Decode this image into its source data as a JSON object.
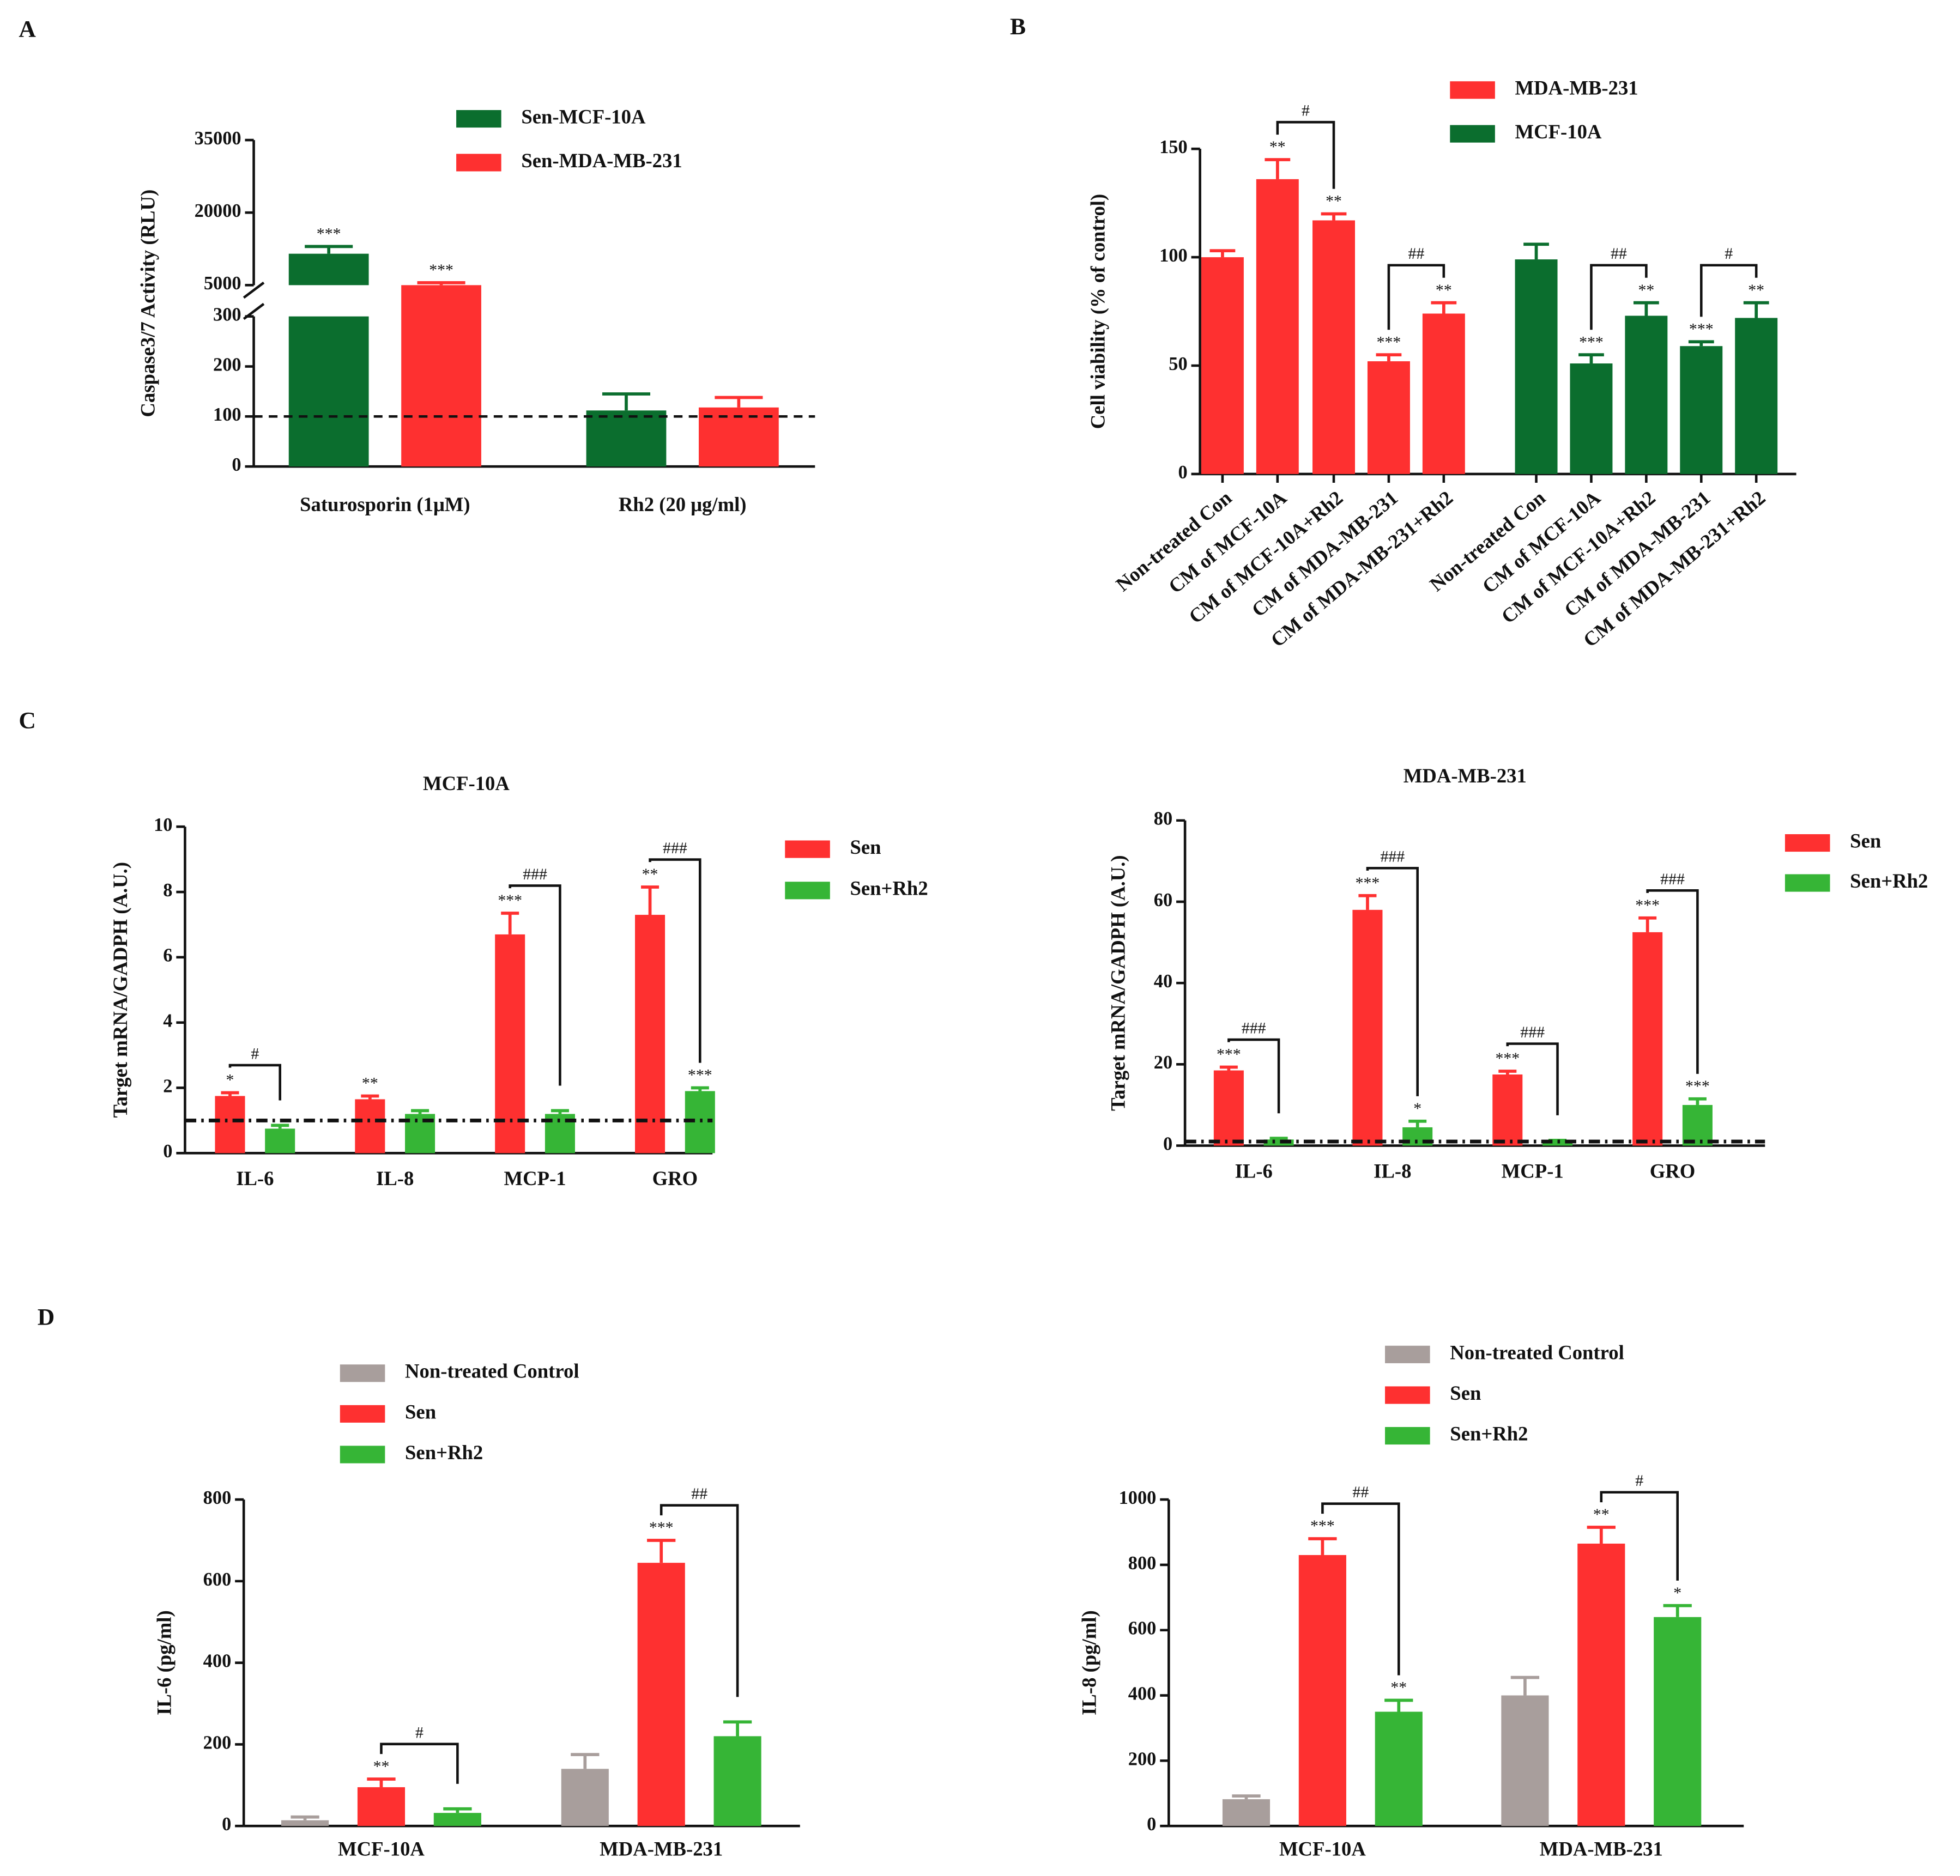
{
  "chart_data": [
    {
      "type": "bar",
      "panel": "A",
      "ylabel": "Caspase3/7  Activity (RLU)",
      "categories": [
        "Saturosporin (1μM)",
        "Rh2 (20 μg/ml)"
      ],
      "series": [
        {
          "name": "Sen-MCF-10A",
          "color": "#0b6e2e",
          "values": [
            11500,
            112
          ],
          "errors": [
            1500,
            33
          ],
          "stars": [
            "***",
            null
          ]
        },
        {
          "name": "Sen-MDA-MB-231",
          "color": "#fe3030",
          "values": [
            5000,
            118
          ],
          "errors": [
            500,
            20
          ],
          "stars": [
            "***",
            null
          ]
        }
      ],
      "ylim": [
        0,
        35000
      ],
      "ybreak": [
        300,
        5000
      ],
      "yticks": [
        0,
        100,
        200,
        300,
        5000,
        20000,
        35000
      ],
      "reference_line": 100,
      "brackets": []
    },
    {
      "type": "bar",
      "panel": "B",
      "ylabel": "Cell viability (% of control)",
      "categories": [
        "Non-treated Con",
        "CM of MCF-10A",
        "CM of MCF-10A+Rh2",
        "CM of MDA-MB-231",
        "CM of MDA-MB-231+Rh2",
        "Non-treated Con",
        "CM of MCF-10A",
        "CM of MCF-10A+Rh2",
        "CM of MDA-MB-231",
        "CM of MDA-MB-231+Rh2"
      ],
      "series": [
        {
          "name": "MDA-MB-231",
          "color": "#fe3030",
          "values": [
            100,
            136,
            117,
            52,
            74,
            null,
            null,
            null,
            null,
            null
          ],
          "errors": [
            3,
            9,
            3,
            3,
            5,
            null,
            null,
            null,
            null,
            null
          ],
          "stars": [
            null,
            "**",
            "**",
            "***",
            "**",
            null,
            null,
            null,
            null,
            null
          ]
        },
        {
          "name": "MCF-10A",
          "color": "#0b6e2e",
          "values": [
            null,
            null,
            null,
            null,
            null,
            99,
            51,
            73,
            59,
            72
          ],
          "errors": [
            null,
            null,
            null,
            null,
            null,
            7,
            4,
            6,
            2,
            7
          ],
          "stars": [
            null,
            null,
            null,
            null,
            null,
            null,
            "***",
            "**",
            "***",
            "**"
          ]
        }
      ],
      "ylim": [
        0,
        150
      ],
      "yticks": [
        0,
        50,
        100,
        150
      ],
      "brackets": [
        {
          "label": "#",
          "bars": [
            [
              1,
              0
            ],
            [
              2,
              0
            ]
          ]
        },
        {
          "label": "##",
          "bars": [
            [
              3,
              0
            ],
            [
              4,
              0
            ]
          ]
        },
        {
          "label": "##",
          "bars": [
            [
              6,
              1
            ],
            [
              7,
              1
            ]
          ]
        },
        {
          "label": "#",
          "bars": [
            [
              8,
              1
            ],
            [
              9,
              1
            ]
          ]
        }
      ]
    },
    {
      "type": "bar",
      "panel": "C",
      "title": "MCF-10A",
      "ylabel": "Target mRNA/GADPH (A.U.)",
      "categories": [
        "IL-6",
        "IL-8",
        "MCP-1",
        "GRO"
      ],
      "series": [
        {
          "name": "Sen",
          "color": "#fe3030",
          "values": [
            1.75,
            1.65,
            6.7,
            7.3
          ],
          "errors": [
            0.1,
            0.1,
            0.65,
            0.85
          ],
          "stars": [
            "*",
            "**",
            "***",
            "**"
          ]
        },
        {
          "name": "Sen+Rh2",
          "color": "#36b536",
          "values": [
            0.75,
            1.2,
            1.2,
            1.9
          ],
          "errors": [
            0.1,
            0.1,
            0.1,
            0.1
          ],
          "stars": [
            null,
            null,
            null,
            "***"
          ]
        }
      ],
      "ylim": [
        0,
        10
      ],
      "yticks": [
        0,
        2,
        4,
        6,
        8,
        10
      ],
      "reference_line": 1,
      "brackets": [
        {
          "label": "#",
          "bars": [
            [
              0,
              0
            ],
            [
              0,
              1
            ]
          ]
        },
        {
          "label": "###",
          "bars": [
            [
              2,
              0
            ],
            [
              2,
              1
            ]
          ]
        },
        {
          "label": "###",
          "bars": [
            [
              3,
              0
            ],
            [
              3,
              1
            ]
          ]
        }
      ]
    },
    {
      "type": "bar",
      "title": "MDA-MB-231",
      "ylabel": "Target mRNA/GADPH (A.U.)",
      "categories": [
        "IL-6",
        "IL-8",
        "MCP-1",
        "GRO"
      ],
      "series": [
        {
          "name": "Sen",
          "color": "#fe3030",
          "values": [
            18.5,
            58,
            17.5,
            52.5
          ],
          "errors": [
            0.8,
            3.5,
            0.8,
            3.5
          ],
          "stars": [
            "***",
            "***",
            "***",
            "***"
          ]
        },
        {
          "name": "Sen+Rh2",
          "color": "#36b536",
          "values": [
            1.5,
            4.5,
            1,
            10
          ],
          "errors": [
            0.3,
            1.5,
            0.3,
            1.5
          ],
          "stars": [
            null,
            "*",
            null,
            "***"
          ]
        }
      ],
      "ylim": [
        0,
        80
      ],
      "yticks": [
        0,
        20,
        40,
        60,
        80
      ],
      "reference_line": 1,
      "brackets": [
        {
          "label": "###",
          "bars": [
            [
              0,
              0
            ],
            [
              0,
              1
            ]
          ]
        },
        {
          "label": "###",
          "bars": [
            [
              1,
              0
            ],
            [
              1,
              1
            ]
          ]
        },
        {
          "label": "###",
          "bars": [
            [
              2,
              0
            ],
            [
              2,
              1
            ]
          ]
        },
        {
          "label": "###",
          "bars": [
            [
              3,
              0
            ],
            [
              3,
              1
            ]
          ]
        }
      ]
    },
    {
      "type": "bar",
      "panel": "D",
      "ylabel": "IL-6 (pg/ml)",
      "categories": [
        "MCF-10A",
        "MDA-MB-231"
      ],
      "series": [
        {
          "name": "Non-treated Control",
          "color": "#a89e9c",
          "values": [
            14,
            140
          ],
          "errors": [
            8,
            35
          ],
          "stars": [
            null,
            null
          ]
        },
        {
          "name": "Sen",
          "color": "#fe3030",
          "values": [
            95,
            645
          ],
          "errors": [
            20,
            55
          ],
          "stars": [
            "**",
            "***"
          ]
        },
        {
          "name": "Sen+Rh2",
          "color": "#36b536",
          "values": [
            32,
            220
          ],
          "errors": [
            10,
            35
          ],
          "stars": [
            null,
            null
          ]
        }
      ],
      "ylim": [
        0,
        800
      ],
      "yticks": [
        0,
        200,
        400,
        600,
        800
      ],
      "brackets": [
        {
          "label": "#",
          "bars": [
            [
              0,
              1
            ],
            [
              0,
              2
            ]
          ]
        },
        {
          "label": "##",
          "bars": [
            [
              1,
              1
            ],
            [
              1,
              2
            ]
          ]
        }
      ]
    },
    {
      "type": "bar",
      "ylabel": "IL-8 (pg/ml)",
      "categories": [
        "MCF-10A",
        "MDA-MB-231"
      ],
      "series": [
        {
          "name": "Non-treated Control",
          "color": "#a89e9c",
          "values": [
            82,
            400
          ],
          "errors": [
            10,
            55
          ],
          "stars": [
            null,
            null
          ]
        },
        {
          "name": "Sen",
          "color": "#fe3030",
          "values": [
            830,
            865
          ],
          "errors": [
            50,
            50
          ],
          "stars": [
            "***",
            "**"
          ]
        },
        {
          "name": "Sen+Rh2",
          "color": "#36b536",
          "values": [
            350,
            640
          ],
          "errors": [
            35,
            35
          ],
          "stars": [
            "**",
            "*"
          ]
        }
      ],
      "ylim": [
        0,
        1000
      ],
      "yticks": [
        0,
        200,
        400,
        600,
        800,
        1000
      ],
      "brackets": [
        {
          "label": "##",
          "bars": [
            [
              0,
              1
            ],
            [
              0,
              2
            ]
          ]
        },
        {
          "label": "#",
          "bars": [
            [
              1,
              1
            ],
            [
              1,
              2
            ]
          ]
        }
      ]
    }
  ]
}
